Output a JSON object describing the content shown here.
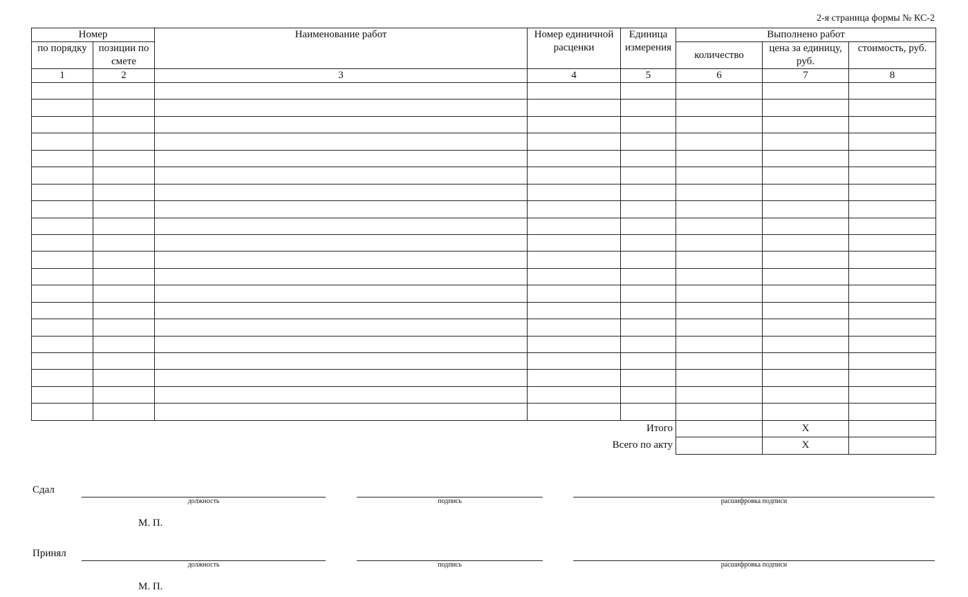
{
  "page_ref": "2-я страница формы № КС-2",
  "table": {
    "group_number": "Номер",
    "col_order": "по порядку",
    "col_position": "позиции по смете",
    "col_name": "Наименование работ",
    "col_rate": "Номер единичной расценки",
    "col_unit": "Единица измерения",
    "group_done": "Выполнено работ",
    "col_qty": "количество",
    "col_price": "цена за единицу, руб.",
    "col_cost": "стоимость, руб.",
    "col_numbers": [
      "1",
      "2",
      "3",
      "4",
      "5",
      "6",
      "7",
      "8"
    ],
    "rows": [
      [
        "",
        "",
        "",
        "",
        "",
        "",
        "",
        ""
      ],
      [
        "",
        "",
        "",
        "",
        "",
        "",
        "",
        ""
      ],
      [
        "",
        "",
        "",
        "",
        "",
        "",
        "",
        ""
      ],
      [
        "",
        "",
        "",
        "",
        "",
        "",
        "",
        ""
      ],
      [
        "",
        "",
        "",
        "",
        "",
        "",
        "",
        ""
      ],
      [
        "",
        "",
        "",
        "",
        "",
        "",
        "",
        ""
      ],
      [
        "",
        "",
        "",
        "",
        "",
        "",
        "",
        ""
      ],
      [
        "",
        "",
        "",
        "",
        "",
        "",
        "",
        ""
      ],
      [
        "",
        "",
        "",
        "",
        "",
        "",
        "",
        ""
      ],
      [
        "",
        "",
        "",
        "",
        "",
        "",
        "",
        ""
      ],
      [
        "",
        "",
        "",
        "",
        "",
        "",
        "",
        ""
      ],
      [
        "",
        "",
        "",
        "",
        "",
        "",
        "",
        ""
      ],
      [
        "",
        "",
        "",
        "",
        "",
        "",
        "",
        ""
      ],
      [
        "",
        "",
        "",
        "",
        "",
        "",
        "",
        ""
      ],
      [
        "",
        "",
        "",
        "",
        "",
        "",
        "",
        ""
      ],
      [
        "",
        "",
        "",
        "",
        "",
        "",
        "",
        ""
      ],
      [
        "",
        "",
        "",
        "",
        "",
        "",
        "",
        ""
      ],
      [
        "",
        "",
        "",
        "",
        "",
        "",
        "",
        ""
      ],
      [
        "",
        "",
        "",
        "",
        "",
        "",
        "",
        ""
      ],
      [
        "",
        "",
        "",
        "",
        "",
        "",
        "",
        ""
      ]
    ],
    "totals": [
      {
        "label": "Итого",
        "qty": "",
        "price": "X",
        "cost": ""
      },
      {
        "label": "Всего по акту",
        "qty": "",
        "price": "X",
        "cost": ""
      }
    ]
  },
  "signatures": [
    {
      "role": "Сдал",
      "position": "должность",
      "signature": "подпись",
      "decoding": "расшифровка подписи",
      "stamp": "М. П."
    },
    {
      "role": "Принял",
      "position": "должность",
      "signature": "подпись",
      "decoding": "расшифровка подписи",
      "stamp": "М. П."
    }
  ]
}
